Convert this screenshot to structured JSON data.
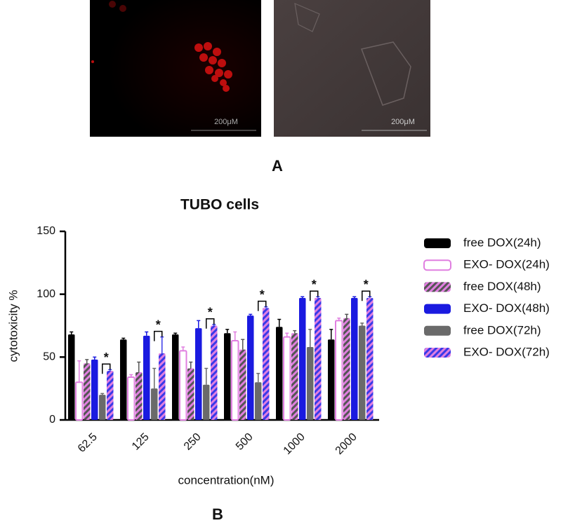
{
  "images": [
    {
      "scale_label": "200μM"
    },
    {
      "scale_label": "200μM"
    }
  ],
  "panel_labels": [
    "A",
    "B"
  ],
  "chart_data": {
    "type": "bar",
    "title": "TUBO cells",
    "y_label": "cytotoxicity %",
    "x_label": "concentration(nM)",
    "categories": [
      "62.5",
      "125",
      "250",
      "500",
      "1000",
      "2000"
    ],
    "ylim": [
      0,
      150
    ],
    "yticks": [
      0,
      50,
      100,
      150
    ],
    "significance": [
      "*",
      "*",
      "*",
      "*",
      "*",
      "*"
    ],
    "series": [
      {
        "name": "free DOX(24h)",
        "color": "#000000",
        "values": [
          68,
          64,
          68,
          69,
          74,
          64
        ],
        "errors": [
          2,
          1,
          1,
          3,
          6,
          8
        ]
      },
      {
        "name": "EXO- DOX(24h)",
        "color": "#e07fe0",
        "fill": "#ffffff",
        "values": [
          30,
          34,
          55,
          63,
          66,
          79
        ],
        "errors": [
          17,
          2,
          3,
          7,
          3,
          2
        ]
      },
      {
        "name": "free DOX(48h)",
        "color": "#555555",
        "hatch_color": "#e07fe0",
        "values": [
          45,
          38,
          41,
          56,
          69,
          81
        ],
        "errors": [
          3,
          8,
          5,
          8,
          2,
          3
        ]
      },
      {
        "name": "EXO- DOX(48h)",
        "color": "#1a1ae0",
        "values": [
          48,
          67,
          73,
          83,
          97,
          97
        ],
        "errors": [
          2,
          3,
          6,
          1,
          1,
          1
        ]
      },
      {
        "name": "free DOX(72h)",
        "color": "#6a6a6a",
        "values": [
          20,
          25,
          28,
          30,
          58,
          75
        ],
        "errors": [
          1,
          16,
          13,
          7,
          14,
          2
        ]
      },
      {
        "name": "EXO- DOX(72h)",
        "color": "#3a3ae8",
        "hatch_color": "#e07fe0",
        "values": [
          39,
          53,
          75,
          89,
          97,
          97
        ],
        "errors": [
          1,
          13,
          1,
          1,
          1,
          1
        ]
      }
    ]
  }
}
